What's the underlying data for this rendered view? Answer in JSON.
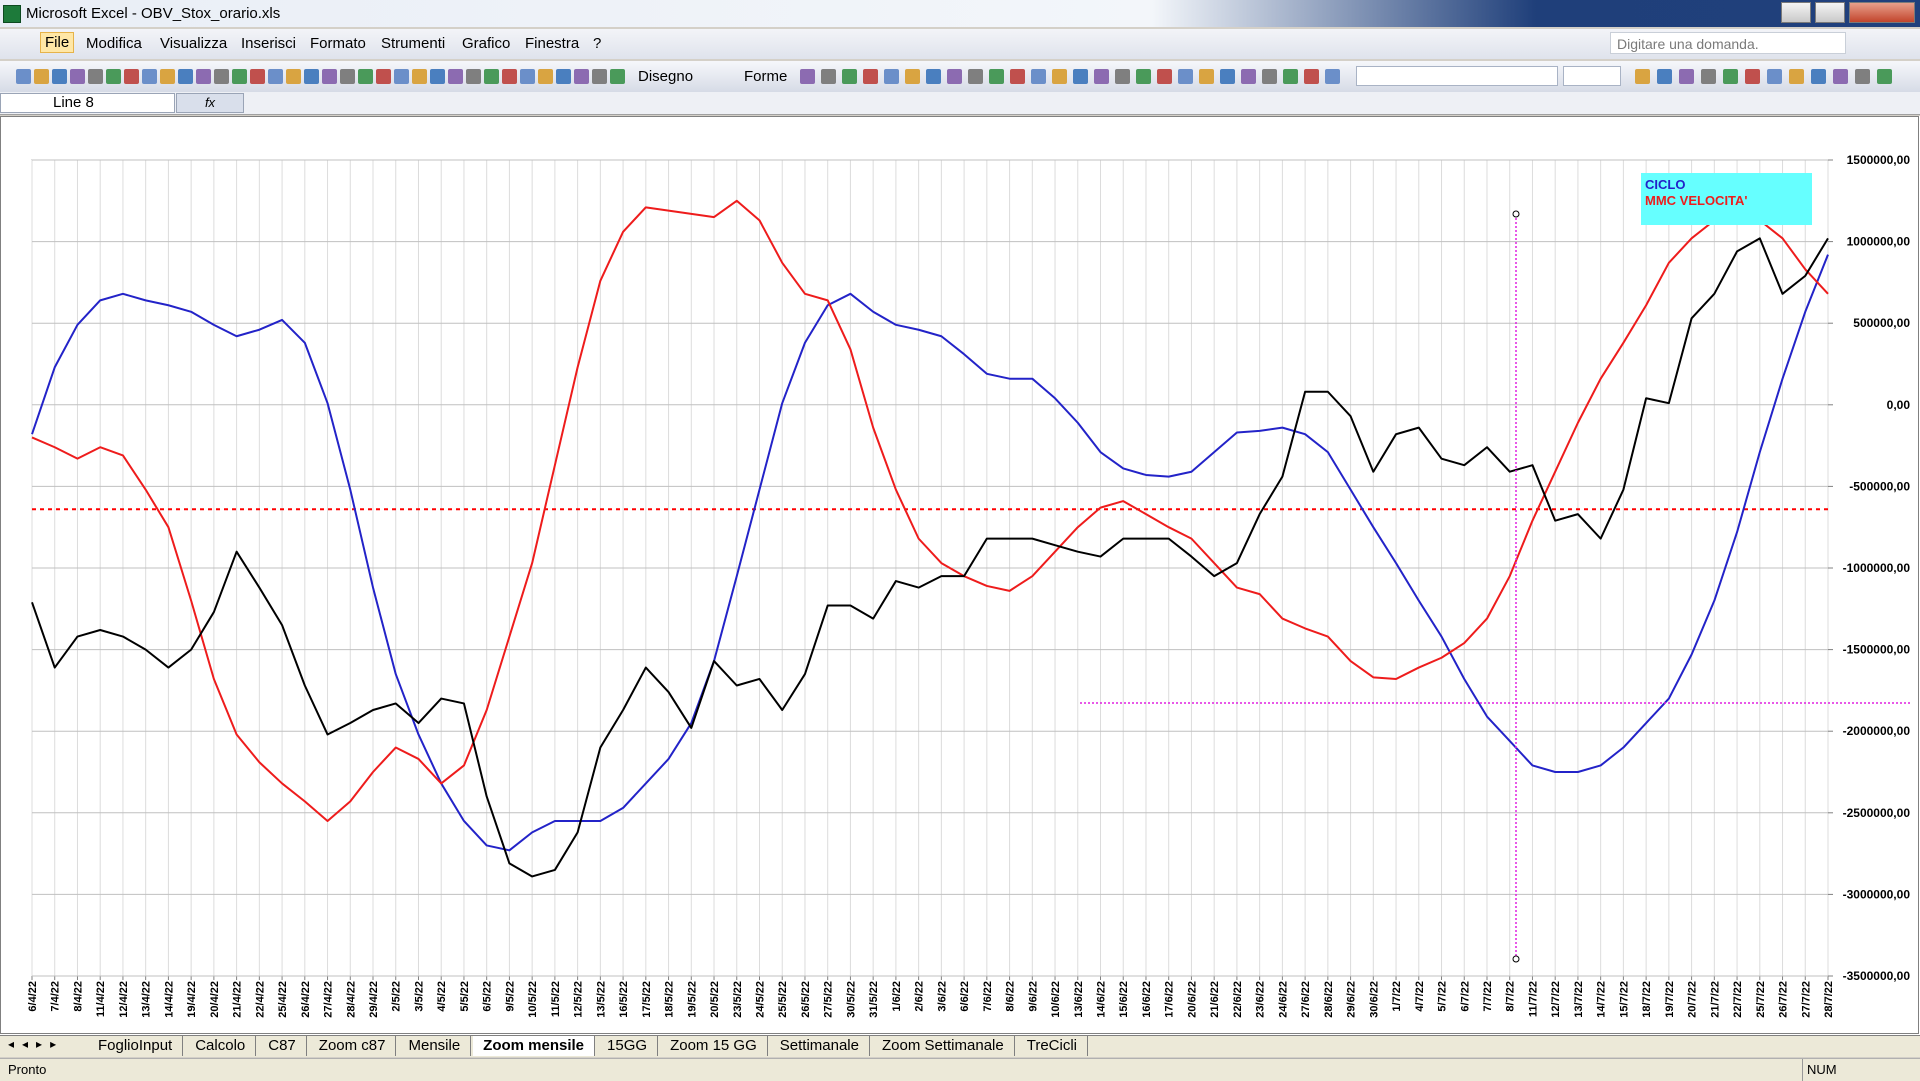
{
  "window": {
    "title": "Microsoft Excel - OBV_Stox_orario.xls"
  },
  "menu": {
    "items": [
      "File",
      "Modifica",
      "Visualizza",
      "Inserisci",
      "Formato",
      "Strumenti",
      "Grafico",
      "Finestra",
      "?"
    ],
    "help_placeholder": "Digitare una domanda."
  },
  "toolbar": {
    "labels": [
      "Disegno",
      "Forme"
    ]
  },
  "formula_bar": {
    "name_box": "Line 8"
  },
  "sheet_tabs": {
    "tabs": [
      "FoglioInput",
      "Calcolo",
      "C87",
      "Zoom c87",
      "Mensile",
      "Zoom mensile",
      "15GG",
      "Zoom 15 GG",
      "Settimanale",
      "Zoom Settimanale",
      "TreCicli"
    ],
    "active": 5
  },
  "status": {
    "left": "Pronto",
    "right": "NUM"
  },
  "chart_data": {
    "type": "line",
    "categories": [
      "6/4/22",
      "7/4/22",
      "8/4/22",
      "11/4/22",
      "12/4/22",
      "13/4/22",
      "14/4/22",
      "19/4/22",
      "20/4/22",
      "21/4/22",
      "22/4/22",
      "25/4/22",
      "26/4/22",
      "27/4/22",
      "28/4/22",
      "29/4/22",
      "2/5/22",
      "3/5/22",
      "4/5/22",
      "5/5/22",
      "6/5/22",
      "9/5/22",
      "10/5/22",
      "11/5/22",
      "12/5/22",
      "13/5/22",
      "16/5/22",
      "17/5/22",
      "18/5/22",
      "19/5/22",
      "20/5/22",
      "23/5/22",
      "24/5/22",
      "25/5/22",
      "26/5/22",
      "27/5/22",
      "30/5/22",
      "31/5/22",
      "1/6/22",
      "2/6/22",
      "3/6/22",
      "6/6/22",
      "7/6/22",
      "8/6/22",
      "9/6/22",
      "10/6/22",
      "13/6/22",
      "14/6/22",
      "15/6/22",
      "16/6/22",
      "17/6/22",
      "20/6/22",
      "21/6/22",
      "22/6/22",
      "23/6/22",
      "24/6/22",
      "27/6/22",
      "28/6/22",
      "29/6/22",
      "30/6/22",
      "1/7/22",
      "4/7/22",
      "5/7/22",
      "6/7/22",
      "7/7/22",
      "8/7/22",
      "11/7/22",
      "12/7/22",
      "13/7/22",
      "14/7/22",
      "15/7/22",
      "18/7/22",
      "19/7/22",
      "20/7/22",
      "21/7/22",
      "22/7/22",
      "25/7/22",
      "26/7/22",
      "27/7/22",
      "28/7/22"
    ],
    "series": [
      {
        "name": "CICLO",
        "color": "#2323c8",
        "values": [
          -180000,
          230000,
          490000,
          640000,
          680000,
          640000,
          610000,
          570000,
          490000,
          420000,
          460000,
          520000,
          380000,
          10000,
          -520000,
          -1120000,
          -1650000,
          -2020000,
          -2320000,
          -2550000,
          -2700000,
          -2730000,
          -2620000,
          -2550000,
          -2550000,
          -2550000,
          -2470000,
          -2320000,
          -2170000,
          -1950000,
          -1570000,
          -1050000,
          -520000,
          10000,
          380000,
          610000,
          680000,
          570000,
          490000,
          460000,
          420000,
          310000,
          190000,
          160000,
          160000,
          40000,
          -110000,
          -290000,
          -390000,
          -430000,
          -440000,
          -410000,
          -290000,
          -170000,
          -160000,
          -140000,
          -180000,
          -290000,
          -520000,
          -750000,
          -970000,
          -1200000,
          -1420000,
          -1680000,
          -1910000,
          -2060000,
          -2210000,
          -2250000,
          -2250000,
          -2210000,
          -2100000,
          -1950000,
          -1800000,
          -1530000,
          -1200000,
          -780000,
          -290000,
          160000,
          570000,
          920000
        ]
      },
      {
        "name": "MMC VELOCITA'",
        "color": "#ee1c1c",
        "values": [
          -200000,
          -260000,
          -330000,
          -260000,
          -310000,
          -520000,
          -750000,
          -1200000,
          -1680000,
          -2020000,
          -2190000,
          -2320000,
          -2430000,
          -2550000,
          -2430000,
          -2250000,
          -2100000,
          -2170000,
          -2320000,
          -2210000,
          -1870000,
          -1420000,
          -970000,
          -370000,
          230000,
          760000,
          1060000,
          1210000,
          1190000,
          1170000,
          1150000,
          1250000,
          1130000,
          870000,
          680000,
          640000,
          340000,
          -140000,
          -520000,
          -820000,
          -970000,
          -1050000,
          -1110000,
          -1140000,
          -1050000,
          -900000,
          -750000,
          -630000,
          -590000,
          -670000,
          -750000,
          -820000,
          -970000,
          -1120000,
          -1160000,
          -1310000,
          -1370000,
          -1420000,
          -1570000,
          -1670000,
          -1680000,
          -1610000,
          -1550000,
          -1460000,
          -1310000,
          -1050000,
          -710000,
          -410000,
          -110000,
          160000,
          380000,
          610000,
          870000,
          1020000,
          1130000,
          1130000,
          1130000,
          1020000,
          830000,
          680000
        ]
      },
      {
        "color": "#000000",
        "values": [
          -1210000,
          -1610000,
          -1420000,
          -1380000,
          -1420000,
          -1500000,
          -1610000,
          -1500000,
          -1270000,
          -900000,
          -1120000,
          -1350000,
          -1720000,
          -2020000,
          -1950000,
          -1870000,
          -1830000,
          -1950000,
          -1800000,
          -1830000,
          -2400000,
          -2810000,
          -2890000,
          -2850000,
          -2620000,
          -2100000,
          -1870000,
          -1610000,
          -1760000,
          -1980000,
          -1570000,
          -1720000,
          -1680000,
          -1870000,
          -1650000,
          -1230000,
          -1230000,
          -1310000,
          -1080000,
          -1120000,
          -1050000,
          -1050000,
          -820000,
          -820000,
          -820000,
          -860000,
          -900000,
          -930000,
          -820000,
          -820000,
          -820000,
          -930000,
          -1050000,
          -970000,
          -670000,
          -440000,
          80000,
          80000,
          -70000,
          -410000,
          -180000,
          -140000,
          -330000,
          -370000,
          -260000,
          -410000,
          -370000,
          -710000,
          -670000,
          -820000,
          -520000,
          40000,
          10000,
          530000,
          680000,
          940000,
          1020000,
          680000,
          790000,
          1020000
        ]
      }
    ],
    "reference_line": {
      "value": -640000,
      "color": "#ff0000"
    },
    "ylim": [
      -3500000,
      1500000
    ],
    "yticks": [
      {
        "value": 1500000,
        "label": "1500000,00"
      },
      {
        "value": 1000000,
        "label": "1000000,00"
      },
      {
        "value": 500000,
        "label": "500000,00"
      },
      {
        "value": 0,
        "label": "0,00"
      },
      {
        "value": -500000,
        "label": "-500000,00"
      },
      {
        "value": -1000000,
        "label": "-1000000,00"
      },
      {
        "value": -1500000,
        "label": "-1500000,00"
      },
      {
        "value": -2000000,
        "label": "-2000000,00"
      },
      {
        "value": -2500000,
        "label": "-2500000,00"
      },
      {
        "value": -3000000,
        "label": "-3000000,00"
      },
      {
        "value": -3500000,
        "label": "-3500000,00"
      }
    ],
    "y_axis_side": "right",
    "grid": true,
    "legend_position": "top-right",
    "legend_color": "#66ffff"
  }
}
